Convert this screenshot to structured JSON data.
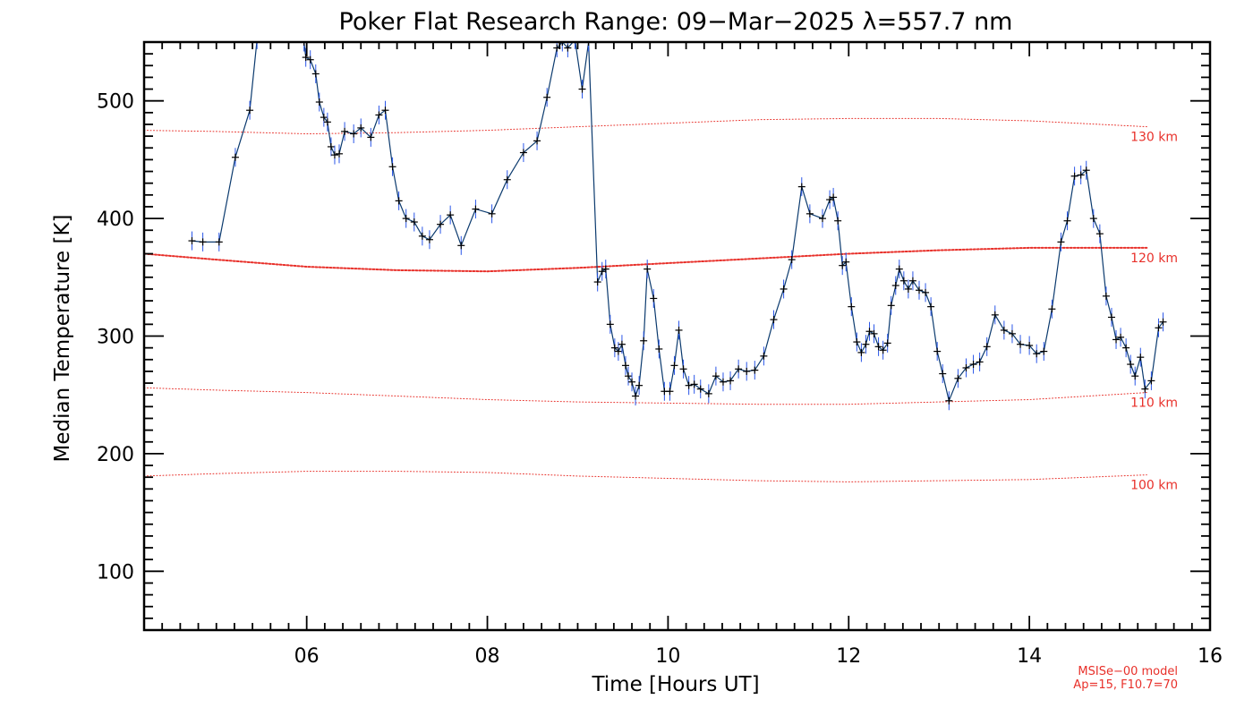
{
  "colors": {
    "data_line": "#0b3a6e",
    "error_bars": "#2a56e8",
    "markers": "#000000",
    "model_lines": "#e8302a",
    "axes": "#000000",
    "background": "#ffffff"
  },
  "chart_data": {
    "type": "line",
    "title": "Poker Flat Research Range: 09−Mar−2025 λ=557.7 nm",
    "xlabel": "Time [Hours UT]",
    "ylabel": "Median Temperature [K]",
    "xlim": [
      4.2,
      16.0
    ],
    "ylim": [
      50,
      550
    ],
    "x_ticks": [
      6,
      8,
      10,
      12,
      14,
      16
    ],
    "x_tick_labels": [
      "06",
      "08",
      "10",
      "12",
      "14",
      "16"
    ],
    "y_ticks": [
      100,
      200,
      300,
      400,
      500
    ],
    "y_tick_labels": [
      "100",
      "200",
      "300",
      "400",
      "500"
    ],
    "grid": false,
    "series": [
      {
        "points": [
          [
            4.73,
            381
          ],
          [
            4.85,
            380
          ],
          [
            5.03,
            380
          ],
          [
            5.21,
            452
          ],
          [
            5.37,
            492
          ],
          [
            5.45,
            552
          ],
          [
            5.97,
            550
          ],
          [
            5.99,
            537
          ],
          [
            6.04,
            535
          ],
          [
            6.1,
            523
          ],
          [
            6.14,
            499
          ],
          [
            6.19,
            486
          ],
          [
            6.23,
            482
          ],
          [
            6.27,
            461
          ],
          [
            6.31,
            454
          ],
          [
            6.36,
            455
          ],
          [
            6.42,
            474
          ],
          [
            6.52,
            472
          ],
          [
            6.6,
            477
          ],
          [
            6.71,
            469
          ],
          [
            6.8,
            488
          ],
          [
            6.87,
            492
          ],
          [
            6.95,
            444
          ],
          [
            7.02,
            415
          ],
          [
            7.1,
            400
          ],
          [
            7.19,
            397
          ],
          [
            7.28,
            385
          ],
          [
            7.36,
            382
          ],
          [
            7.48,
            395
          ],
          [
            7.59,
            403
          ],
          [
            7.71,
            377
          ],
          [
            7.87,
            408
          ],
          [
            8.05,
            404
          ],
          [
            8.22,
            433
          ],
          [
            8.4,
            456
          ],
          [
            8.55,
            466
          ],
          [
            8.66,
            503
          ],
          [
            8.77,
            545
          ],
          [
            8.83,
            550
          ],
          [
            8.89,
            545
          ],
          [
            8.97,
            552
          ],
          [
            9.05,
            510
          ],
          [
            9.12,
            550
          ],
          [
            9.22,
            346
          ],
          [
            9.27,
            355
          ],
          [
            9.31,
            357
          ],
          [
            9.36,
            310
          ],
          [
            9.41,
            290
          ],
          [
            9.45,
            287
          ],
          [
            9.49,
            293
          ],
          [
            9.53,
            275
          ],
          [
            9.56,
            266
          ],
          [
            9.6,
            261
          ],
          [
            9.64,
            249
          ],
          [
            9.68,
            258
          ],
          [
            9.73,
            296
          ],
          [
            9.77,
            357
          ],
          [
            9.84,
            332
          ],
          [
            9.9,
            289
          ],
          [
            9.96,
            253
          ],
          [
            10.02,
            253
          ],
          [
            10.07,
            275
          ],
          [
            10.12,
            305
          ],
          [
            10.17,
            272
          ],
          [
            10.23,
            258
          ],
          [
            10.29,
            259
          ],
          [
            10.36,
            255
          ],
          [
            10.45,
            251
          ],
          [
            10.53,
            266
          ],
          [
            10.61,
            261
          ],
          [
            10.69,
            262
          ],
          [
            10.78,
            272
          ],
          [
            10.87,
            270
          ],
          [
            10.96,
            271
          ],
          [
            11.06,
            283
          ],
          [
            11.17,
            314
          ],
          [
            11.28,
            340
          ],
          [
            11.37,
            365
          ],
          [
            11.48,
            427
          ],
          [
            11.57,
            404
          ],
          [
            11.71,
            400
          ],
          [
            11.79,
            416
          ],
          [
            11.83,
            418
          ],
          [
            11.88,
            398
          ],
          [
            11.93,
            360
          ],
          [
            11.97,
            363
          ],
          [
            12.03,
            325
          ],
          [
            12.09,
            295
          ],
          [
            12.14,
            286
          ],
          [
            12.19,
            293
          ],
          [
            12.23,
            304
          ],
          [
            12.28,
            302
          ],
          [
            12.33,
            291
          ],
          [
            12.38,
            288
          ],
          [
            12.43,
            294
          ],
          [
            12.47,
            326
          ],
          [
            12.52,
            343
          ],
          [
            12.56,
            357
          ],
          [
            12.61,
            347
          ],
          [
            12.66,
            340
          ],
          [
            12.71,
            347
          ],
          [
            12.78,
            339
          ],
          [
            12.85,
            337
          ],
          [
            12.91,
            325
          ],
          [
            12.98,
            287
          ],
          [
            13.04,
            268
          ],
          [
            13.11,
            245
          ],
          [
            13.21,
            264
          ],
          [
            13.3,
            273
          ],
          [
            13.38,
            276
          ],
          [
            13.45,
            278
          ],
          [
            13.53,
            291
          ],
          [
            13.62,
            318
          ],
          [
            13.72,
            305
          ],
          [
            13.81,
            302
          ],
          [
            13.9,
            293
          ],
          [
            14.0,
            292
          ],
          [
            14.08,
            285
          ],
          [
            14.16,
            287
          ],
          [
            14.25,
            323
          ],
          [
            14.35,
            380
          ],
          [
            14.42,
            398
          ],
          [
            14.5,
            436
          ],
          [
            14.57,
            437
          ],
          [
            14.63,
            441
          ],
          [
            14.71,
            400
          ],
          [
            14.78,
            387
          ],
          [
            14.85,
            334
          ],
          [
            14.91,
            316
          ],
          [
            14.96,
            297
          ],
          [
            15.01,
            299
          ],
          [
            15.07,
            290
          ],
          [
            15.12,
            276
          ],
          [
            15.17,
            266
          ],
          [
            15.23,
            282
          ],
          [
            15.28,
            255
          ],
          [
            15.35,
            262
          ],
          [
            15.43,
            307
          ],
          [
            15.48,
            312
          ]
        ],
        "error_bar_half_width_K": 8
      }
    ],
    "model_lines": [
      {
        "label": "130 km",
        "style": "thin-dotted",
        "points": [
          [
            4.2,
            475
          ],
          [
            5.0,
            474
          ],
          [
            6.0,
            472
          ],
          [
            7.0,
            473
          ],
          [
            8.0,
            475
          ],
          [
            9.0,
            478
          ],
          [
            10.0,
            481
          ],
          [
            11.0,
            484
          ],
          [
            12.0,
            485
          ],
          [
            13.0,
            485
          ],
          [
            14.0,
            483
          ],
          [
            15.3,
            478
          ]
        ]
      },
      {
        "label": "120 km",
        "style": "thick-dotted",
        "points": [
          [
            4.2,
            370
          ],
          [
            5.0,
            365
          ],
          [
            6.0,
            359
          ],
          [
            7.0,
            356
          ],
          [
            8.0,
            355
          ],
          [
            9.0,
            358
          ],
          [
            10.0,
            362
          ],
          [
            11.0,
            366
          ],
          [
            12.0,
            370
          ],
          [
            13.0,
            373
          ],
          [
            14.0,
            375
          ],
          [
            15.3,
            375
          ]
        ]
      },
      {
        "label": "110 km",
        "style": "thin-dotted",
        "points": [
          [
            4.2,
            256
          ],
          [
            5.0,
            254
          ],
          [
            6.0,
            252
          ],
          [
            7.0,
            249
          ],
          [
            8.0,
            246
          ],
          [
            9.0,
            244
          ],
          [
            10.0,
            243
          ],
          [
            11.0,
            242
          ],
          [
            12.0,
            242
          ],
          [
            13.0,
            244
          ],
          [
            14.0,
            246
          ],
          [
            15.3,
            252
          ]
        ]
      },
      {
        "label": "100 km",
        "style": "thin-dotted",
        "points": [
          [
            4.2,
            181
          ],
          [
            5.0,
            183
          ],
          [
            6.0,
            185
          ],
          [
            7.0,
            185
          ],
          [
            8.0,
            184
          ],
          [
            9.0,
            181
          ],
          [
            10.0,
            179
          ],
          [
            11.0,
            177
          ],
          [
            12.0,
            176
          ],
          [
            13.0,
            177
          ],
          [
            14.0,
            178
          ],
          [
            15.3,
            182
          ]
        ]
      }
    ],
    "annotations": {
      "model_name": "MSISe−00 model",
      "model_params": "Ap=15, F10.7=70"
    }
  }
}
